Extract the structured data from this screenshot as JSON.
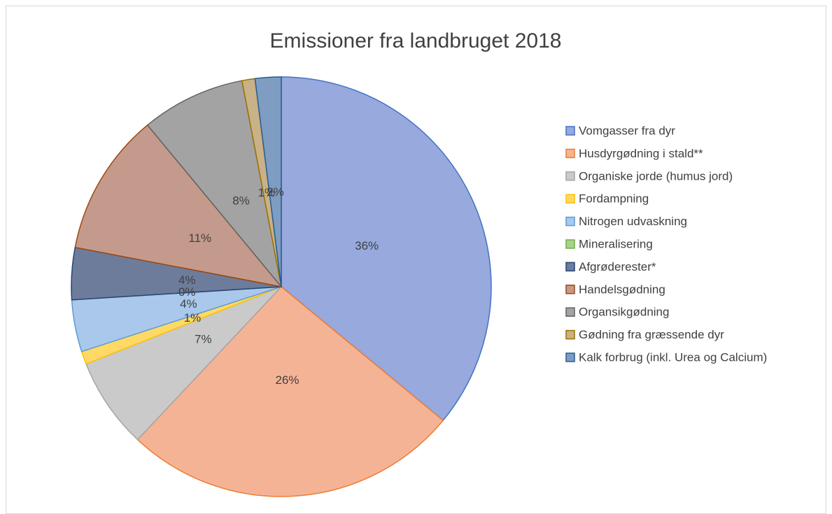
{
  "chart_data": {
    "type": "pie",
    "title": "Emissioner fra landbruget 2018",
    "categories": [
      "Vomgasser fra dyr",
      "Husdyrgødning i stald**",
      "Organiske jorde (humus jord)",
      "Fordampning",
      "Nitrogen udvaskning",
      "Mineralisering",
      "Afgrøderester*",
      "Handelsgødning",
      "Organsikgødning",
      "Gødning fra græssende dyr",
      "Kalk forbrug (inkl. Urea og Calcium)"
    ],
    "values": [
      36,
      26,
      7,
      1,
      4,
      0,
      4,
      11,
      8,
      1,
      2
    ],
    "value_labels": [
      "36%",
      "26%",
      "7%",
      "1%",
      "4%",
      "0%",
      "4%",
      "11%",
      "8%",
      "1%",
      "2%"
    ],
    "colors": [
      "#97a9dd",
      "#f5b396",
      "#cacaca",
      "#ffd966",
      "#a9c8ec",
      "#a9d18e",
      "#6e7c9b",
      "#c49a8c",
      "#a3a3a3",
      "#c9b188",
      "#7f9cc2"
    ],
    "edge_colors": [
      "#4472c4",
      "#ed7d31",
      "#a5a5a5",
      "#ffc000",
      "#5b9bd5",
      "#70ad47",
      "#264478",
      "#9e480e",
      "#636363",
      "#997300",
      "#255e91"
    ],
    "legend": "right"
  }
}
